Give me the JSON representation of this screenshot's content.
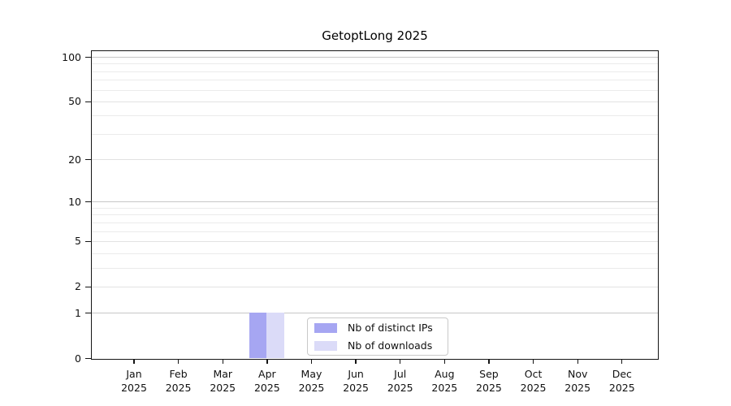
{
  "chart_data": {
    "type": "bar",
    "title": "GetoptLong 2025",
    "x": {
      "categories": [
        "Jan",
        "Feb",
        "Mar",
        "Apr",
        "May",
        "Jun",
        "Jul",
        "Aug",
        "Sep",
        "Oct",
        "Nov",
        "Dec"
      ],
      "year_label": "2025"
    },
    "y_axis": {
      "scale": "log1p",
      "ylim": [
        0,
        110
      ],
      "labeled_ticks": [
        0,
        1,
        2,
        5,
        10,
        20,
        50,
        100
      ],
      "decade_ticks": [
        1,
        10,
        100
      ],
      "minor_ticks": [
        3,
        4,
        6,
        7,
        8,
        9,
        30,
        40,
        60,
        70,
        80,
        90
      ],
      "grid": "both"
    },
    "series": [
      {
        "name": "Nb of distinct IPs",
        "color": "#a6a6f2",
        "values": [
          0,
          0,
          0,
          1,
          0,
          0,
          0,
          0,
          0,
          0,
          0,
          0
        ]
      },
      {
        "name": "Nb of downloads",
        "color": "#dbdbf8",
        "values": [
          0,
          0,
          0,
          1,
          0,
          0,
          0,
          0,
          0,
          0,
          0,
          0
        ]
      }
    ],
    "legend": {
      "position": "bottom-center"
    },
    "colors": {
      "grid_major": "#c7c7c7",
      "grid_minor": "#ebebeb",
      "axis": "#151515"
    }
  }
}
